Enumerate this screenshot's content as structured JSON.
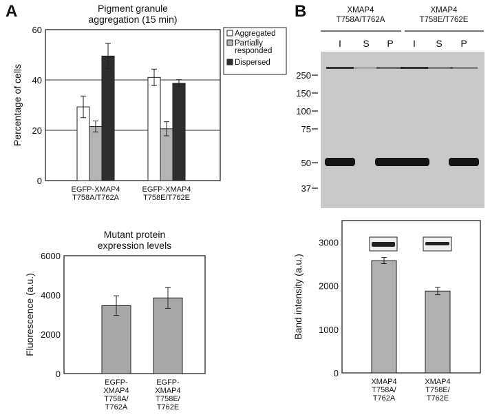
{
  "panels": {
    "a": "A",
    "b": "B"
  },
  "chart_data": [
    {
      "type": "bar",
      "title": [
        "Pigment granule",
        "aggregation (15 min)"
      ],
      "ylabel": "Percentage of cells",
      "ylim": [
        0,
        60
      ],
      "yticks": [
        "0",
        "20",
        "40",
        "60"
      ],
      "grid": true,
      "categories": [
        [
          "EGFP-XMAP4",
          "T758A/T762A"
        ],
        [
          "EGFP-XMAP4",
          "T758E/T762E"
        ]
      ],
      "legend_position": "right",
      "series": [
        {
          "name": "Aggregated",
          "values": [
            29.3,
            41.0
          ],
          "errors": [
            4.3,
            3.3
          ],
          "color": "#ffffff"
        },
        {
          "name": [
            "Partially",
            "responded"
          ],
          "values": [
            21.5,
            20.6
          ],
          "errors": [
            2.2,
            2.8
          ],
          "color": "#b4b4b4"
        },
        {
          "name": "Dispersed",
          "values": [
            49.5,
            38.7
          ],
          "errors": [
            5.0,
            1.4
          ],
          "color": "#2e2e2e"
        }
      ]
    },
    {
      "type": "bar",
      "title": [
        "Mutant protein",
        "expression levels"
      ],
      "ylabel": "Fluorescence (a.u.)",
      "ylim": [
        0,
        6000
      ],
      "yticks": [
        "0",
        "2000",
        "4000",
        "6000"
      ],
      "categories": [
        [
          "EGFP-",
          "XMAP4",
          "T758A/",
          "T762A"
        ],
        [
          "EGFP-",
          "XMAP4",
          "T758E/",
          "T762E"
        ]
      ],
      "values": [
        3460,
        3850
      ],
      "errors": [
        500,
        530
      ],
      "color": "#a8a8a8"
    },
    {
      "type": "bar",
      "ylabel": "Band intensity (a.u.)",
      "ylim": [
        0,
        3500
      ],
      "yticks": [
        "0",
        "1000",
        "2000",
        "3000"
      ],
      "categories": [
        [
          "XMAP4",
          "T758A/",
          "T762A"
        ],
        [
          "XMAP4",
          "T758E/",
          "T762E"
        ]
      ],
      "values": [
        2580,
        1880
      ],
      "errors": [
        70,
        85
      ],
      "color": "#b0b0b0"
    }
  ],
  "gel": {
    "groups": [
      [
        "XMAP4",
        "T758A/T762A"
      ],
      [
        "XMAP4",
        "T758E/T762E"
      ]
    ],
    "lanes": [
      "I",
      "S",
      "P",
      "I",
      "S",
      "P"
    ],
    "markers": [
      "250",
      "150",
      "100",
      "75",
      "50",
      "37"
    ]
  }
}
